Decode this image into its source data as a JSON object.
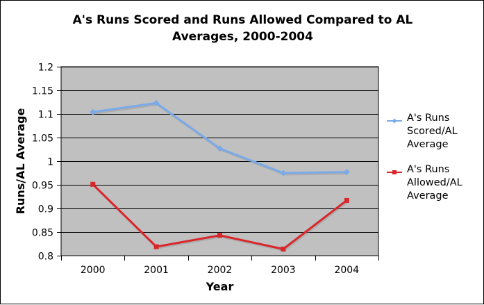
{
  "chart_data": {
    "type": "line",
    "title_lines": [
      "A's Runs Scored and Runs Allowed Compared to AL",
      "Averages, 2000-2004"
    ],
    "xlabel": "Year",
    "ylabel": "Runs/AL Average",
    "categories": [
      "2000",
      "2001",
      "2002",
      "2003",
      "2004"
    ],
    "ylim": [
      0.8,
      1.2
    ],
    "yticks": [
      0.8,
      0.85,
      0.9,
      0.95,
      1,
      1.05,
      1.1,
      1.15,
      1.2
    ],
    "ytick_labels": [
      "0.8",
      "0.85",
      "0.9",
      "0.95",
      "1",
      "1.05",
      "1.1",
      "1.15",
      "1.2"
    ],
    "grid": true,
    "plot_background": "#c0c0c0",
    "legend_position": "right",
    "series": [
      {
        "name_lines": [
          "A's Runs",
          "Scored/AL",
          "Average"
        ],
        "values": [
          1.104,
          1.123,
          1.027,
          0.975,
          0.977
        ],
        "color": "#7aaae8",
        "marker": "diamond"
      },
      {
        "name_lines": [
          "A's Runs",
          "Allowed/AL",
          "Average"
        ],
        "values": [
          0.951,
          0.819,
          0.843,
          0.814,
          0.917
        ],
        "color": "#d9262a",
        "marker": "square"
      }
    ]
  }
}
